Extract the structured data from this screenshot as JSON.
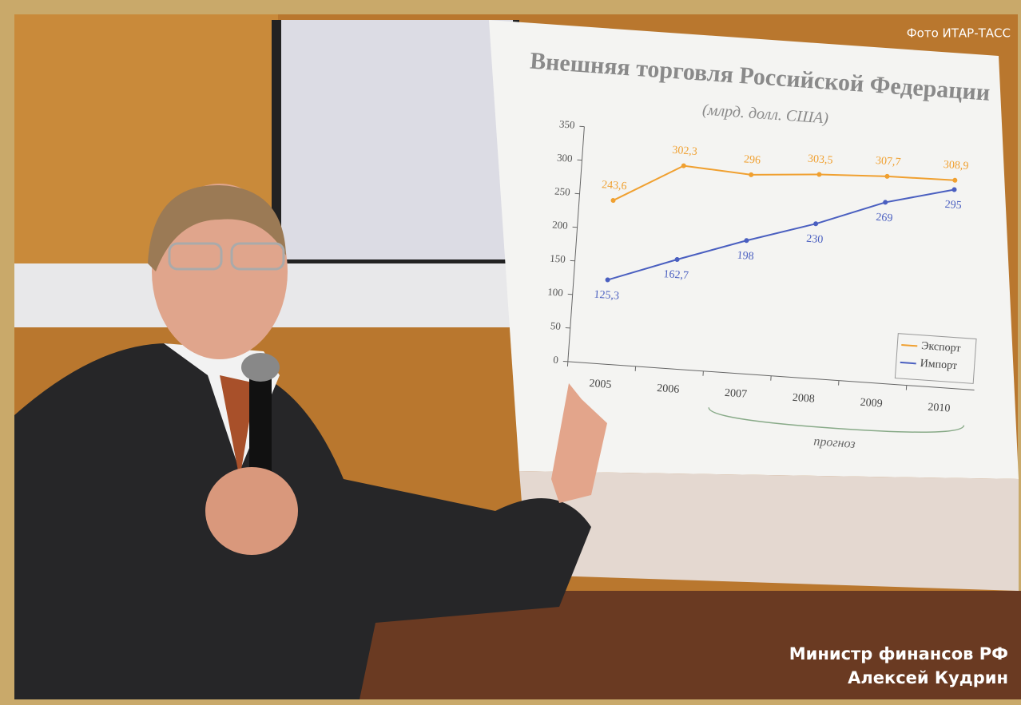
{
  "photo": {
    "credit": "Фото ИТАР-ТАСС",
    "caption": [
      "Министр финансов РФ",
      "Алексей Кудрин"
    ]
  },
  "chart_data": {
    "type": "line",
    "title": "Внешняя торговля Российской Федерации",
    "subtitle": "(млрд. долл. США)",
    "categories": [
      "2005",
      "2006",
      "2007",
      "2008",
      "2009",
      "2010"
    ],
    "series": [
      {
        "name": "Экспорт",
        "color": "#f0a030",
        "values": [
          243.6,
          302.3,
          296,
          303.5,
          307.7,
          308.9
        ],
        "value_labels": [
          "243,6",
          "302,3",
          "296",
          "303,5",
          "307,7",
          "308,9"
        ]
      },
      {
        "name": "Импорт",
        "color": "#4a5fc0",
        "values": [
          125.3,
          162.7,
          198,
          230,
          269,
          295
        ],
        "value_labels": [
          "125,3",
          "162,7",
          "198",
          "230",
          "269",
          "295"
        ]
      }
    ],
    "ylim": [
      0,
      350
    ],
    "yticks": [
      0,
      50,
      100,
      150,
      200,
      250,
      300,
      350
    ],
    "annotation": "прогноз",
    "legend": "lower right"
  }
}
